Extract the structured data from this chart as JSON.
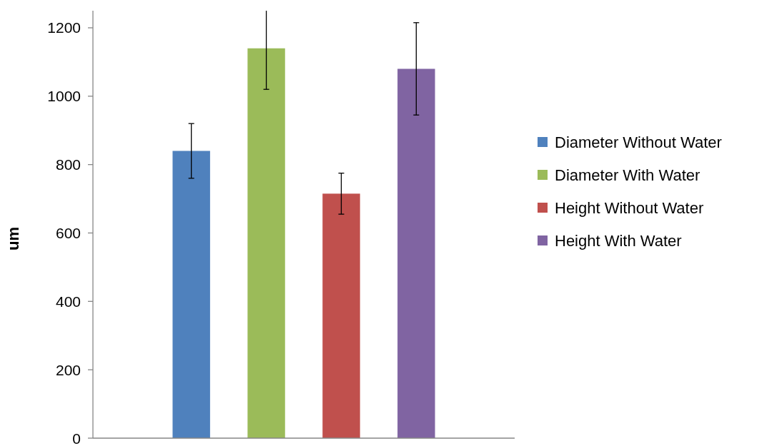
{
  "chart_data": {
    "type": "bar",
    "ylabel": "um",
    "categories": [
      null
    ],
    "series": [
      {
        "name": "Diameter Without Water",
        "color": "#4f81bd",
        "values": [
          840
        ],
        "errors": [
          80
        ]
      },
      {
        "name": "Diameter With Water",
        "color": "#9bbb59",
        "values": [
          1140
        ],
        "errors": [
          [
            1020,
            1250
          ]
        ]
      },
      {
        "name": "Height Without Water",
        "color": "#c0504d",
        "values": [
          715
        ],
        "errors": [
          60
        ]
      },
      {
        "name": "Height With Water",
        "color": "#8064a2",
        "values": [
          1080
        ],
        "errors": [
          135
        ]
      }
    ],
    "ylim": [
      0,
      1250
    ],
    "yticks": [
      0,
      200,
      400,
      600,
      800,
      1000,
      1200
    ],
    "grid": false,
    "legend": "right"
  }
}
